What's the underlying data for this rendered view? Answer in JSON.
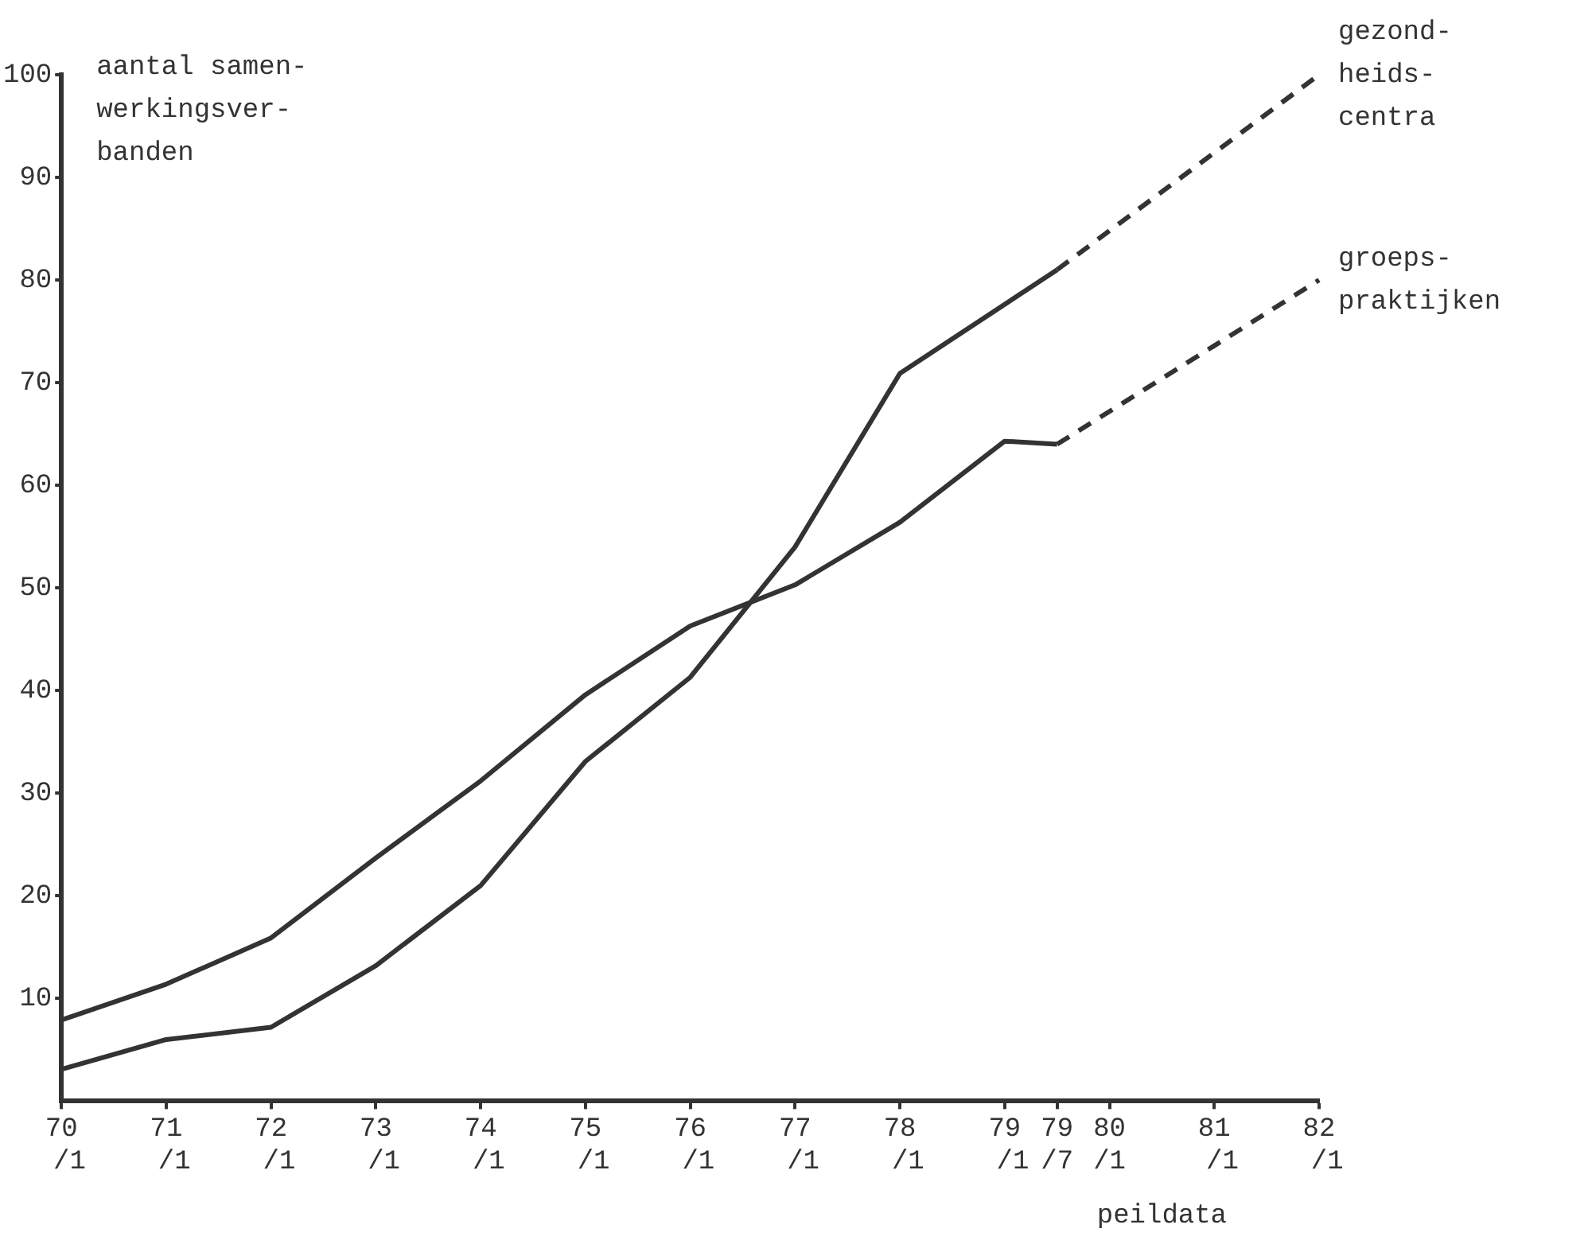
{
  "chart_data": {
    "type": "line",
    "xlabel": "peildata",
    "ylabel": "aantal samen-\nwerkingsver-\nbanden",
    "categories": [
      "70\n /1",
      null,
      "71\n /1",
      null,
      "72\n /1",
      null,
      "73\n /1",
      null,
      "74\n /1",
      null,
      "75\n /1",
      null,
      "76\n /1",
      null,
      "77\n /1",
      null,
      "78\n /1",
      null,
      "79\n /1",
      "79\n/7",
      "80\n/1",
      null,
      "81\n /1",
      null,
      "82\n /1"
    ],
    "ylim": [
      0,
      100
    ],
    "yticks": [
      10,
      20,
      30,
      40,
      50,
      60,
      70,
      80,
      90,
      100
    ],
    "grid": false,
    "legend": false,
    "marker": "none",
    "series": [
      {
        "color": "#333333",
        "line_style": "solid",
        "values": [
          3.1,
          null,
          6,
          null,
          7.2,
          null,
          13.2,
          null,
          21,
          null,
          33.1,
          null,
          41.3,
          null,
          54,
          null,
          70.9,
          null,
          null,
          81,
          null,
          null,
          null,
          null,
          null
        ]
      },
      {
        "name": "gezond-\nheids-\ncentra",
        "color": "#333333",
        "line_style": "dashed",
        "values": [
          null,
          null,
          null,
          null,
          null,
          null,
          null,
          null,
          null,
          null,
          null,
          null,
          null,
          null,
          null,
          null,
          null,
          null,
          null,
          81,
          null,
          null,
          null,
          null,
          100
        ]
      },
      {
        "color": "#333333",
        "line_style": "solid",
        "values": [
          7.9,
          null,
          11.4,
          null,
          15.9,
          null,
          23.7,
          null,
          31.2,
          null,
          39.6,
          null,
          46.3,
          null,
          50.3,
          null,
          56.4,
          null,
          64.3,
          64,
          null,
          null,
          null,
          null,
          null
        ]
      },
      {
        "name": "groeps-\npraktijken",
        "color": "#333333",
        "line_style": "dashed",
        "values": [
          null,
          null,
          null,
          null,
          null,
          null,
          null,
          null,
          null,
          null,
          null,
          null,
          null,
          null,
          null,
          null,
          null,
          null,
          null,
          64,
          null,
          null,
          null,
          null,
          80
        ]
      }
    ]
  }
}
